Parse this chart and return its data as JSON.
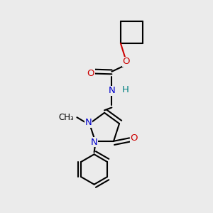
{
  "bg_color": "#ebebeb",
  "bond_color": "#000000",
  "N_color": "#0000cc",
  "O_color": "#cc0000",
  "H_color": "#008080",
  "lw": 1.5,
  "fs": 9.5,
  "xlim": [
    0.0,
    1.0
  ],
  "ylim": [
    0.0,
    1.0
  ]
}
